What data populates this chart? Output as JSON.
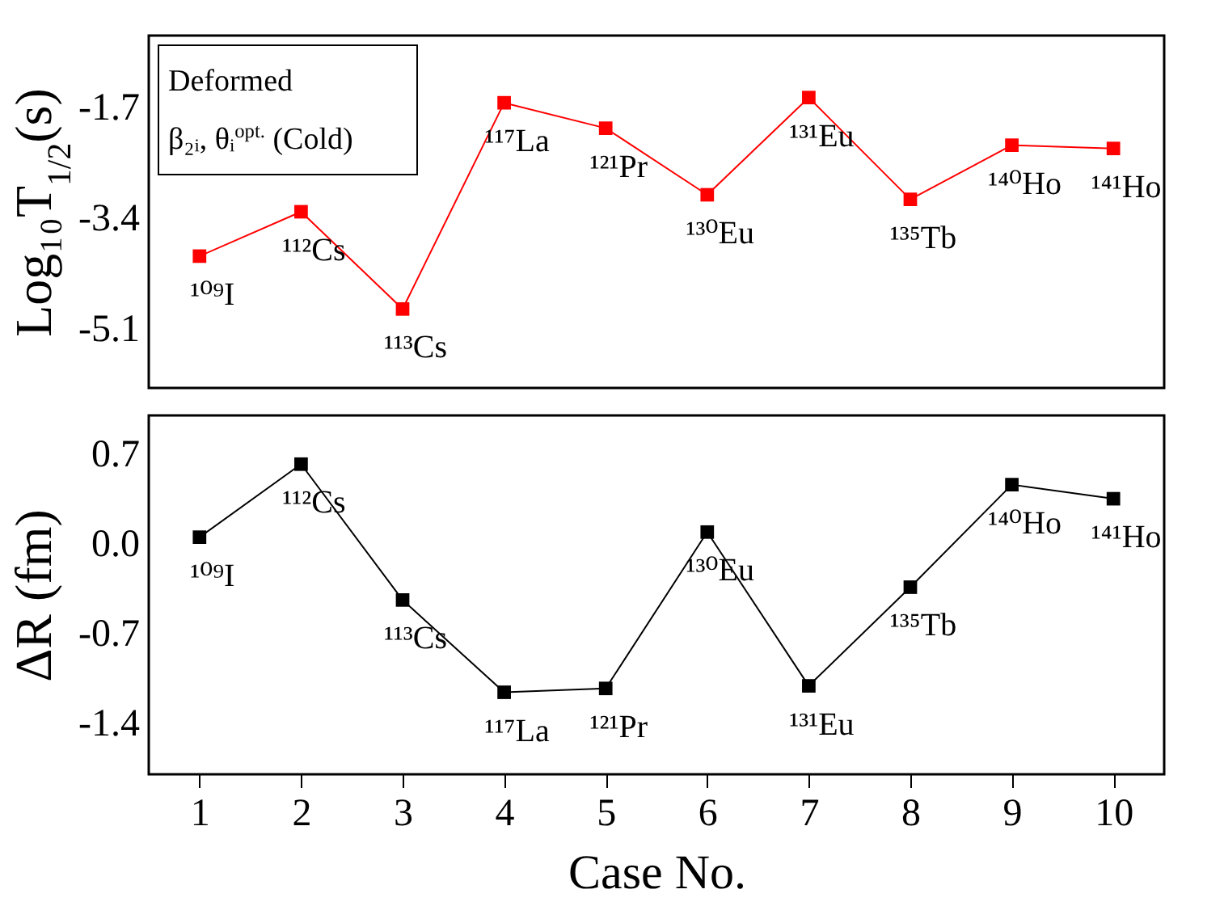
{
  "chart_data": [
    {
      "type": "line",
      "ylabel": "Log₁₀T$_{1/2}$(s)",
      "x": [
        1,
        2,
        3,
        4,
        5,
        6,
        7,
        8,
        9,
        10
      ],
      "xlim": [
        0.5,
        10.5
      ],
      "xticks": [
        1,
        2,
        3,
        4,
        5,
        6,
        7,
        8,
        9,
        10
      ],
      "ylim": [
        -6.0,
        -0.6
      ],
      "yticks": [
        -1.7,
        -3.4,
        -5.1
      ],
      "tick_labels": "y",
      "grid": false,
      "marker": "square",
      "line_style": "solid",
      "series": [
        {
          "color": "#ff0000",
          "values": [
            -3.98,
            -3.3,
            -4.79,
            -1.63,
            -2.02,
            -3.04,
            -1.55,
            -3.11,
            -2.28,
            -2.33
          ]
        }
      ],
      "annotations": [
        "Deformed",
        "β₂ᵢ, θᵢ$^{opt.}$ (Cold)",
        {
          "text": "¹⁰⁹I",
          "x": 1,
          "y": -3.98
        },
        {
          "text": "¹¹²Cs",
          "x": 2,
          "y": -3.3
        },
        {
          "text": "¹¹³Cs",
          "x": 3,
          "y": -4.79
        },
        {
          "text": "¹¹⁷La",
          "x": 4,
          "y": -1.63
        },
        {
          "text": "¹²¹Pr",
          "x": 5,
          "y": -2.02
        },
        {
          "text": "¹³⁰Eu",
          "x": 6,
          "y": -3.04
        },
        {
          "text": "¹³¹Eu",
          "x": 7,
          "y": -1.55
        },
        {
          "text": "¹³⁵Tb",
          "x": 8,
          "y": -3.11
        },
        {
          "text": "¹⁴⁰Ho",
          "x": 9,
          "y": -2.28
        },
        {
          "text": "¹⁴¹Ho",
          "x": 10,
          "y": -2.33
        }
      ]
    },
    {
      "type": "line",
      "xlabel": "Case No.",
      "ylabel": "ΔR (fm)",
      "x": [
        1,
        2,
        3,
        4,
        5,
        6,
        7,
        8,
        9,
        10
      ],
      "xlim": [
        0.5,
        10.5
      ],
      "xticks": [
        1,
        2,
        3,
        4,
        5,
        6,
        7,
        8,
        9,
        10
      ],
      "ylim": [
        -1.8,
        1.0
      ],
      "yticks": [
        0.7,
        {
          "value": 0,
          "label": "0.0"
        },
        -0.7,
        -1.4
      ],
      "grid": false,
      "marker": "square",
      "line_style": "solid",
      "series": [
        {
          "color": "#000000",
          "values": [
            0.05,
            0.62,
            -0.44,
            -1.16,
            -1.13,
            0.09,
            -1.11,
            -0.34,
            0.46,
            0.35
          ]
        }
      ],
      "annotations": [
        {
          "text": "¹⁰⁹I",
          "x": 1,
          "y": 0.05
        },
        {
          "text": "¹¹²Cs",
          "x": 2,
          "y": 0.62
        },
        {
          "text": "¹¹³Cs",
          "x": 3,
          "y": -0.44
        },
        {
          "text": "¹¹⁷La",
          "x": 4,
          "y": -1.16
        },
        {
          "text": "¹²¹Pr",
          "x": 5,
          "y": -1.13
        },
        {
          "text": "¹³⁰Eu",
          "x": 6,
          "y": 0.09
        },
        {
          "text": "¹³¹Eu",
          "x": 7,
          "y": -1.11
        },
        {
          "text": "¹³⁵Tb",
          "x": 8,
          "y": -0.34
        },
        {
          "text": "¹⁴⁰Ho",
          "x": 9,
          "y": 0.46
        },
        {
          "text": "¹⁴¹Ho",
          "x": 10,
          "y": 0.35
        }
      ]
    }
  ]
}
